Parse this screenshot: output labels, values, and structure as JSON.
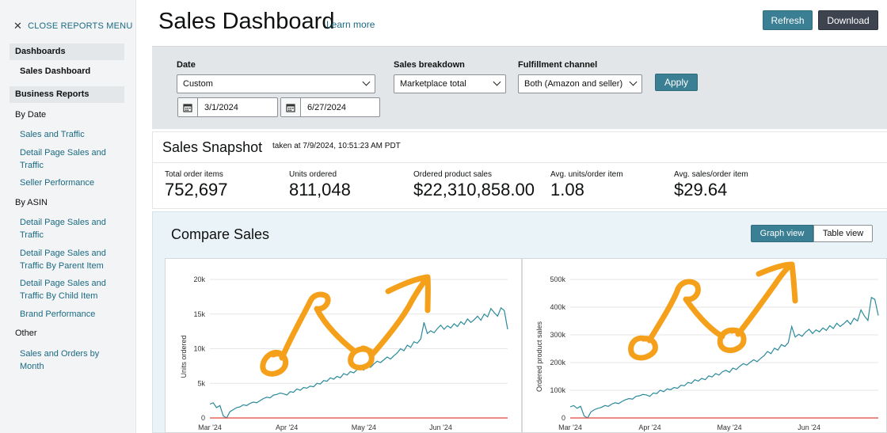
{
  "sidebar": {
    "close_label": "CLOSE REPORTS MENU",
    "sections": [
      {
        "heading": "Dashboards"
      },
      {
        "heading": "Business Reports"
      }
    ],
    "sales_dashboard": "Sales Dashboard",
    "by_date": "By Date",
    "sales_and_traffic": "Sales and Traffic",
    "detail_page_sales_and_traffic": "Detail Page Sales and Traffic",
    "seller_performance": "Seller Performance",
    "by_asin": "By ASIN",
    "asin_detail_page": "Detail Page Sales and Traffic",
    "asin_by_parent": "Detail Page Sales and Traffic By Parent Item",
    "asin_by_child": "Detail Page Sales and Traffic By Child Item",
    "brand_performance": "Brand Performance",
    "other": "Other",
    "sales_orders_by_month": "Sales and Orders by Month"
  },
  "header": {
    "title": "Sales Dashboard",
    "learn_more": "Learn more",
    "refresh": "Refresh",
    "download": "Download"
  },
  "filters": {
    "date_label": "Date",
    "date_value": "Custom",
    "start_date": "3/1/2024",
    "end_date": "6/27/2024",
    "breakdown_label": "Sales breakdown",
    "breakdown_value": "Marketplace total",
    "channel_label": "Fulfillment channel",
    "channel_value": "Both (Amazon and seller)",
    "apply": "Apply"
  },
  "snapshot": {
    "title": "Sales Snapshot",
    "taken": "taken at 7/9/2024, 10:51:23 AM PDT",
    "metrics": [
      {
        "label": "Total order items",
        "value": "752,697"
      },
      {
        "label": "Units ordered",
        "value": "811,048"
      },
      {
        "label": "Ordered product sales",
        "value": "$22,310,858.00"
      },
      {
        "label": "Avg. units/order item",
        "value": "1.08"
      },
      {
        "label": "Avg. sales/order item",
        "value": "$29.64"
      }
    ]
  },
  "compare": {
    "title": "Compare Sales",
    "graph_view": "Graph view",
    "table_view": "Table view"
  },
  "colors": {
    "teal": "#3a7f93",
    "link": "#1b6a83",
    "line": "#2b8a9b",
    "baseline": "#e0453a",
    "annotation": "#f5a01a"
  },
  "chart_data": [
    {
      "type": "line",
      "title": "",
      "xlabel": "",
      "ylabel": "Units ordered",
      "x_ticks": [
        "Mar '24",
        "Apr '24",
        "May '24",
        "Jun '24"
      ],
      "y_ticks": [
        "0",
        "5k",
        "10k",
        "15k",
        "20k"
      ],
      "ylim": [
        0,
        20000
      ],
      "series": [
        {
          "values": [
            2000,
            2200,
            1500,
            1800,
            300,
            0,
            900,
            1200,
            1500,
            1600,
            1900,
            1800,
            2100,
            2300,
            2200,
            2500,
            2800,
            3000,
            2900,
            3300,
            3400,
            3600,
            3500,
            3300,
            3800,
            3700,
            4200,
            4000,
            4400,
            4300,
            4600,
            4500,
            5000,
            4900,
            5400,
            5300,
            5800,
            5600,
            6000,
            5800,
            6400,
            6200,
            6700,
            6500,
            7000,
            7200,
            6900,
            7500,
            7300,
            7800,
            8200,
            8000,
            8400,
            8800,
            8500,
            9000,
            9400,
            10000,
            9700,
            10500,
            10200,
            11000,
            10800,
            11400,
            13800,
            12200,
            12600,
            12300,
            12900,
            13400,
            12800,
            13300,
            13000,
            13600,
            13200,
            13900,
            13500,
            14300,
            13800,
            14200,
            14700,
            14100,
            15000,
            14600,
            15800,
            15200,
            14700,
            15900,
            15500,
            12800
          ]
        },
        {
          "values": [
            0,
            0,
            0,
            0,
            0,
            0,
            0,
            0,
            0,
            0,
            0,
            0,
            0,
            0,
            0,
            0,
            0,
            0,
            0,
            0,
            0,
            0,
            0,
            0,
            0,
            0,
            0,
            0,
            0,
            0,
            0,
            0,
            0,
            0,
            0,
            0,
            0,
            0,
            0,
            0,
            0,
            0,
            0,
            0,
            0,
            0,
            0,
            0,
            0,
            0,
            0,
            0,
            0,
            0,
            0,
            0,
            0,
            0,
            0,
            0,
            0,
            0,
            0,
            0,
            0,
            0,
            0,
            0,
            0,
            0,
            0,
            0,
            0,
            0,
            0,
            0,
            0,
            0,
            0,
            0,
            0,
            0,
            0,
            0,
            0,
            0,
            0,
            0,
            0,
            0
          ]
        }
      ]
    },
    {
      "type": "line",
      "title": "",
      "xlabel": "",
      "ylabel": "Ordered product sales",
      "x_ticks": [
        "Mar '24",
        "Apr '24",
        "May '24",
        "Jun '24"
      ],
      "y_ticks": [
        "0",
        "100k",
        "200k",
        "300k",
        "400k",
        "500k"
      ],
      "ylim": [
        0,
        500000
      ],
      "series": [
        {
          "values": [
            40000,
            45000,
            35000,
            42000,
            8000,
            0,
            22000,
            30000,
            35000,
            38000,
            45000,
            42000,
            50000,
            55000,
            52000,
            60000,
            66000,
            70000,
            68000,
            78000,
            80000,
            85000,
            83000,
            78000,
            90000,
            88000,
            100000,
            95000,
            105000,
            102000,
            110000,
            107000,
            118000,
            116000,
            128000,
            125000,
            138000,
            133000,
            143000,
            138000,
            152000,
            148000,
            160000,
            155000,
            167000,
            172000,
            165000,
            180000,
            175000,
            187000,
            196000,
            191000,
            201000,
            210000,
            203000,
            215000,
            225000,
            240000,
            232000,
            252000,
            245000,
            265000,
            258000,
            272000,
            330000,
            292000,
            302000,
            295000,
            310000,
            320000,
            305000,
            318000,
            311000,
            325000,
            316000,
            333000,
            323000,
            342000,
            330000,
            340000,
            352000,
            338000,
            360000,
            350000,
            390000,
            368000,
            352000,
            435000,
            428000,
            370000
          ]
        },
        {
          "values": [
            0,
            0,
            0,
            0,
            0,
            0,
            0,
            0,
            0,
            0,
            0,
            0,
            0,
            0,
            0,
            0,
            0,
            0,
            0,
            0,
            0,
            0,
            0,
            0,
            0,
            0,
            0,
            0,
            0,
            0,
            0,
            0,
            0,
            0,
            0,
            0,
            0,
            0,
            0,
            0,
            0,
            0,
            0,
            0,
            0,
            0,
            0,
            0,
            0,
            0,
            0,
            0,
            0,
            0,
            0,
            0,
            0,
            0,
            0,
            0,
            0,
            0,
            0,
            0,
            0,
            0,
            0,
            0,
            0,
            0,
            0,
            0,
            0,
            0,
            0,
            0,
            0,
            0,
            0,
            0,
            0,
            0,
            0,
            0,
            0,
            0,
            0,
            0,
            0,
            0
          ]
        }
      ]
    }
  ]
}
